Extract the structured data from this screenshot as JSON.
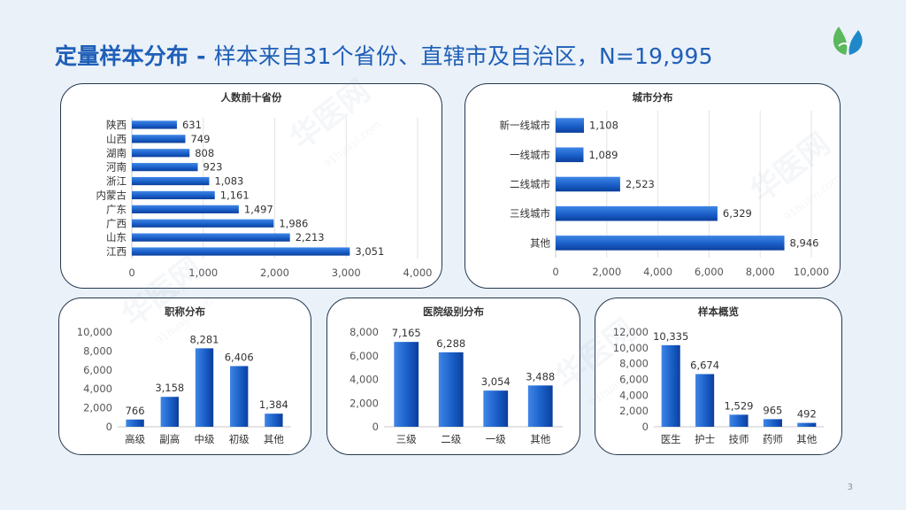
{
  "slide": {
    "title_bold": "定量样本分布 - ",
    "title_rest": "样本来自31个省份、直辖市及自治区，N=19,995",
    "page_number": "3",
    "brand_watermark": "华医网",
    "brand_watermark_url": "91huayi.com",
    "colors": {
      "title": "#1f5fb8",
      "bar_top": "#3f86e6",
      "bar_bottom": "#0b3f9c",
      "panel_border": "#24384f",
      "background": "#eaf1f8"
    }
  },
  "chart_data": [
    {
      "id": "provinces",
      "type": "bar",
      "orientation": "horizontal",
      "title": "人数前十省份",
      "categories": [
        "陕西",
        "山西",
        "湖南",
        "河南",
        "浙江",
        "内蒙古",
        "广东",
        "广西",
        "山东",
        "江西"
      ],
      "values": [
        631,
        749,
        808,
        923,
        1083,
        1161,
        1497,
        1986,
        2213,
        3051
      ],
      "value_labels": [
        "631",
        "749",
        "808",
        "923",
        "1,083",
        "1,161",
        "1,497",
        "1,986",
        "2,213",
        "3,051"
      ],
      "xlim": [
        0,
        4000
      ],
      "ticks": [
        0,
        1000,
        2000,
        3000,
        4000
      ],
      "tick_labels": [
        "0",
        "1,000",
        "2,000",
        "3,000",
        "4,000"
      ],
      "grid": true
    },
    {
      "id": "city",
      "type": "bar",
      "orientation": "horizontal",
      "title": "城市分布",
      "categories": [
        "新一线城市",
        "一线城市",
        "二线城市",
        "三线城市",
        "其他"
      ],
      "values": [
        1108,
        1089,
        2523,
        6329,
        8946
      ],
      "value_labels": [
        "1,108",
        "1,089",
        "2,523",
        "6,329",
        "8,946"
      ],
      "xlim": [
        0,
        10000
      ],
      "ticks": [
        0,
        2000,
        4000,
        6000,
        8000,
        10000
      ],
      "tick_labels": [
        "0",
        "2,000",
        "4,000",
        "6,000",
        "8,000",
        "10,000"
      ],
      "grid": true
    },
    {
      "id": "title_rank",
      "type": "bar",
      "orientation": "vertical",
      "title": "职称分布",
      "categories": [
        "高级",
        "副高",
        "中级",
        "初级",
        "其他"
      ],
      "values": [
        766,
        3158,
        8281,
        6406,
        1384
      ],
      "value_labels": [
        "766",
        "3,158",
        "8,281",
        "6,406",
        "1,384"
      ],
      "ylim": [
        0,
        10000
      ],
      "ticks": [
        0,
        2000,
        4000,
        6000,
        8000,
        10000
      ],
      "tick_labels": [
        "0",
        "2,000",
        "4,000",
        "6,000",
        "8,000",
        "10,000"
      ],
      "grid": false
    },
    {
      "id": "hospital_level",
      "type": "bar",
      "orientation": "vertical",
      "title": "医院级别分布",
      "categories": [
        "三级",
        "二级",
        "一级",
        "其他"
      ],
      "values": [
        7165,
        6288,
        3054,
        3488
      ],
      "value_labels": [
        "7,165",
        "6,288",
        "3,054",
        "3,488"
      ],
      "ylim": [
        0,
        8000
      ],
      "ticks": [
        0,
        2000,
        4000,
        6000,
        8000
      ],
      "tick_labels": [
        "0",
        "2,000",
        "4,000",
        "6,000",
        "8,000"
      ],
      "grid": false
    },
    {
      "id": "sample_overview",
      "type": "bar",
      "orientation": "vertical",
      "title": "样本概览",
      "categories": [
        "医生",
        "护士",
        "技师",
        "药师",
        "其他"
      ],
      "values": [
        10335,
        6674,
        1529,
        965,
        492
      ],
      "value_labels": [
        "10,335",
        "6,674",
        "1,529",
        "965",
        "492"
      ],
      "ylim": [
        0,
        12000
      ],
      "ticks": [
        0,
        2000,
        4000,
        6000,
        8000,
        10000,
        12000
      ],
      "tick_labels": [
        "0",
        "2,000",
        "4,000",
        "6,000",
        "8,000",
        "10,000",
        "12,000"
      ],
      "grid": false
    }
  ]
}
